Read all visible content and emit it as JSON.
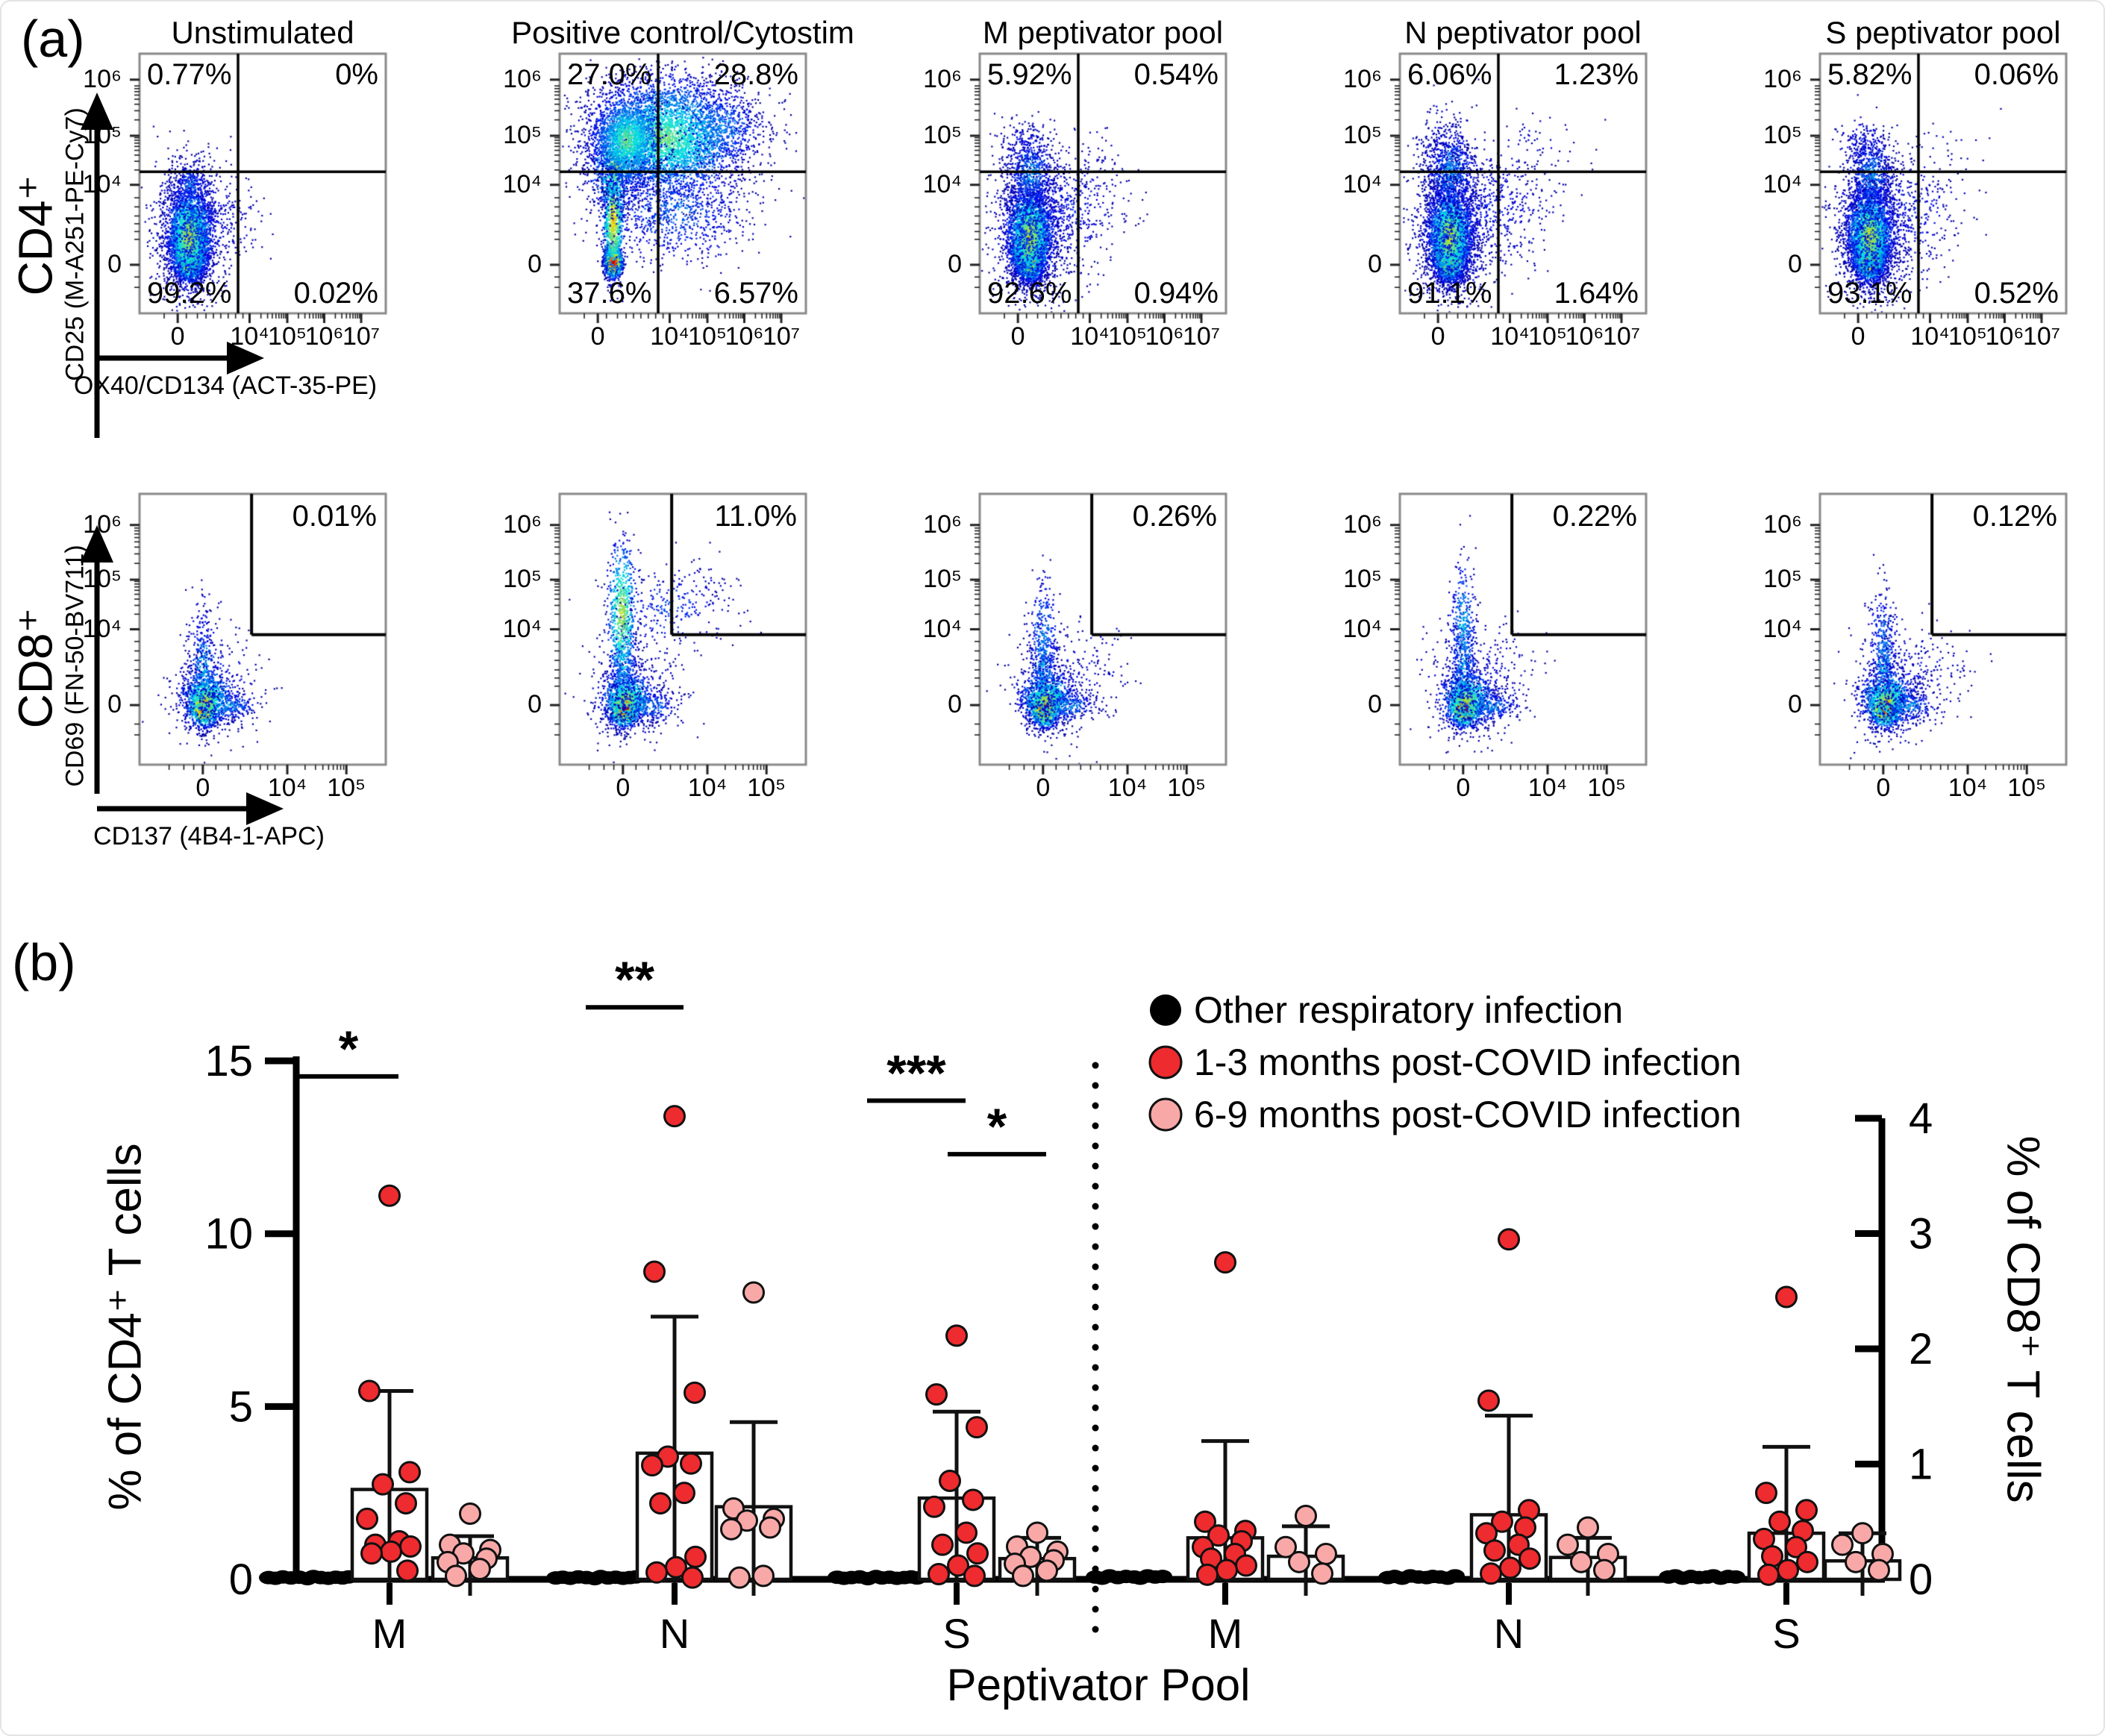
{
  "figure": {
    "panel_a_label": "(a)",
    "panel_b_label": "(b)"
  },
  "panel_a": {
    "column_titles": [
      "Unstimulated",
      "Positive control/Cytostim",
      "M peptivator pool",
      "N peptivator pool",
      "S peptivator pool"
    ],
    "rows": [
      {
        "row_label": "CD4⁺",
        "y_axis_label": "CD25 (M-A251-PE-Cy7)",
        "x_axis_label": "OX40/CD134 (ACT-35-PE)",
        "x_tick_labels": [
          "0",
          "10⁴",
          "10⁵",
          "10⁶",
          "10⁷"
        ],
        "y_tick_labels": [
          "10⁶",
          "10⁵",
          "10⁴",
          "0"
        ],
        "plots": [
          {
            "column": "Unstimulated",
            "quadrant_percents": {
              "upper_left": "0.77%",
              "upper_right": "0%",
              "lower_left": "99.2%",
              "lower_right": "0.02%"
            }
          },
          {
            "column": "Positive control/Cytostim",
            "quadrant_percents": {
              "upper_left": "27.0%",
              "upper_right": "28.8%",
              "lower_left": "37.6%",
              "lower_right": "6.57%"
            }
          },
          {
            "column": "M peptivator pool",
            "quadrant_percents": {
              "upper_left": "5.92%",
              "upper_right": "0.54%",
              "lower_left": "92.6%",
              "lower_right": "0.94%"
            }
          },
          {
            "column": "N peptivator pool",
            "quadrant_percents": {
              "upper_left": "6.06%",
              "upper_right": "1.23%",
              "lower_left": "91.1%",
              "lower_right": "1.64%"
            }
          },
          {
            "column": "S peptivator pool",
            "quadrant_percents": {
              "upper_left": "5.82%",
              "upper_right": "0.06%",
              "lower_left": "93.1%",
              "lower_right": "0.52%"
            }
          }
        ]
      },
      {
        "row_label": "CD8⁺",
        "y_axis_label": "CD69 (FN-50-BV711)",
        "x_axis_label": "CD137 (4B4-1-APC)",
        "x_tick_labels": [
          "0",
          "10⁴",
          "10⁵"
        ],
        "y_tick_labels": [
          "10⁶",
          "10⁵",
          "10⁴",
          "0"
        ],
        "plots": [
          {
            "column": "Unstimulated",
            "gate_percent": "0.01%"
          },
          {
            "column": "Positive control/Cytostim",
            "gate_percent": "11.0%"
          },
          {
            "column": "M peptivator pool",
            "gate_percent": "0.26%"
          },
          {
            "column": "N peptivator pool",
            "gate_percent": "0.22%"
          },
          {
            "column": "S peptivator pool",
            "gate_percent": "0.12%"
          }
        ]
      }
    ]
  },
  "chart_data": {
    "panel": "b",
    "type": "scatter",
    "bar_overlay": true,
    "xlabel": "Peptivator Pool",
    "x_group_labels": [
      "M",
      "N",
      "S",
      "M",
      "N",
      "S"
    ],
    "left_axis": {
      "label": "% of CD4⁺ T cells",
      "range": [
        0,
        15
      ],
      "ticks": [
        0,
        5,
        10,
        15
      ]
    },
    "right_axis": {
      "label": "% of CD8⁺ T cells",
      "range": [
        0,
        4
      ],
      "ticks": [
        0,
        1,
        2,
        3,
        4
      ]
    },
    "legend": [
      {
        "key": "other",
        "label": "Other respiratory infection",
        "color": "#000000"
      },
      {
        "key": "post_1_3",
        "label": "1-3 months post-COVID infection",
        "color": "#ee2b2e"
      },
      {
        "key": "post_6_9",
        "label": "6-9 months post-COVID infection",
        "color": "#f9a8a8"
      }
    ],
    "groups": [
      {
        "axis": "CD4",
        "pool": "M",
        "other": {
          "points": [
            0.05,
            0.03,
            0.07,
            0.04,
            0.06,
            0.02,
            0.08,
            0.05,
            0.03,
            0.06,
            0.04,
            0.07
          ]
        },
        "post_1_3": {
          "bar_mean": 2.6,
          "sd_top": 5.45,
          "points": [
            11.1,
            5.45,
            3.1,
            2.75,
            2.2,
            1.75,
            1.1,
            1.0,
            0.95,
            0.8,
            0.75,
            0.25
          ]
        },
        "post_6_9": {
          "bar_mean": 0.62,
          "sd_top": 1.25,
          "points": [
            1.9,
            1.0,
            0.85,
            0.75,
            0.6,
            0.5,
            0.3,
            0.1
          ]
        }
      },
      {
        "axis": "CD4",
        "pool": "N",
        "other": {
          "points": [
            0.04,
            0.06,
            0.03,
            0.07,
            0.05,
            0.02,
            0.08,
            0.04,
            0.06,
            0.03,
            0.05,
            0.07
          ]
        },
        "post_1_3": {
          "bar_mean": 3.65,
          "sd_top": 7.6,
          "points": [
            13.4,
            8.9,
            5.4,
            3.55,
            3.35,
            3.3,
            2.5,
            2.2,
            0.65,
            0.35,
            0.2,
            0.05
          ]
        },
        "post_6_9": {
          "bar_mean": 2.1,
          "sd_top": 4.55,
          "points": [
            8.3,
            2.05,
            1.75,
            1.7,
            1.5,
            1.45,
            0.1,
            0.05
          ]
        }
      },
      {
        "axis": "CD4",
        "pool": "S",
        "other": {
          "points": [
            0.06,
            0.03,
            0.05,
            0.07,
            0.02,
            0.08,
            0.04,
            0.06,
            0.03,
            0.05,
            0.07,
            0.04
          ]
        },
        "post_1_3": {
          "bar_mean": 2.35,
          "sd_top": 4.85,
          "points": [
            7.05,
            5.35,
            4.4,
            2.85,
            2.3,
            2.1,
            1.35,
            1.0,
            0.75,
            0.4,
            0.15,
            0.1
          ]
        },
        "post_6_9": {
          "bar_mean": 0.6,
          "sd_top": 1.2,
          "points": [
            1.35,
            0.95,
            0.8,
            0.65,
            0.55,
            0.45,
            0.25,
            0.1
          ]
        }
      },
      {
        "axis": "CD8",
        "pool": "M",
        "other": {
          "points": [
            0.02,
            0.01,
            0.03,
            0.015,
            0.025,
            0.02,
            0.01,
            0.03,
            0.02,
            0.025
          ]
        },
        "post_1_3": {
          "bar_mean": 0.36,
          "sd_top": 1.2,
          "points": [
            2.75,
            0.5,
            0.42,
            0.38,
            0.33,
            0.28,
            0.22,
            0.18,
            0.12,
            0.08,
            0.04
          ]
        },
        "post_6_9": {
          "bar_mean": 0.2,
          "sd_top": 0.46,
          "points": [
            0.55,
            0.28,
            0.22,
            0.15,
            0.05
          ]
        }
      },
      {
        "axis": "CD8",
        "pool": "N",
        "other": {
          "points": [
            0.015,
            0.025,
            0.01,
            0.03,
            0.02,
            0.015,
            0.025,
            0.02,
            0.01,
            0.03
          ]
        },
        "post_1_3": {
          "bar_mean": 0.56,
          "sd_top": 1.42,
          "points": [
            2.95,
            1.55,
            0.6,
            0.5,
            0.45,
            0.4,
            0.3,
            0.25,
            0.18,
            0.1,
            0.05
          ]
        },
        "post_6_9": {
          "bar_mean": 0.19,
          "sd_top": 0.36,
          "points": [
            0.45,
            0.3,
            0.22,
            0.15,
            0.08
          ]
        }
      },
      {
        "axis": "CD8",
        "pool": "S",
        "other": {
          "points": [
            0.02,
            0.03,
            0.01,
            0.025,
            0.015,
            0.02,
            0.03,
            0.01,
            0.025,
            0.02
          ]
        },
        "post_1_3": {
          "bar_mean": 0.4,
          "sd_top": 1.15,
          "points": [
            2.45,
            0.75,
            0.6,
            0.5,
            0.42,
            0.35,
            0.28,
            0.2,
            0.15,
            0.08,
            0.04
          ]
        },
        "post_6_9": {
          "bar_mean": 0.16,
          "sd_top": 0.4,
          "points": [
            0.4,
            0.3,
            0.22,
            0.15,
            0.08
          ]
        }
      }
    ],
    "significance": [
      {
        "axis": "CD4",
        "pool": "M",
        "from": "other",
        "to": "post_1_3",
        "stars": "*",
        "line_y": 14.55
      },
      {
        "axis": "CD4",
        "pool": "N",
        "from": "other",
        "to": "post_1_3",
        "stars": "**",
        "line_y": 16.55
      },
      {
        "axis": "CD4",
        "pool": "S",
        "from": "other",
        "to": "post_1_3",
        "stars": "***",
        "line_y": 13.85
      },
      {
        "axis": "CD4",
        "pool": "S",
        "from": "post_1_3",
        "to": "post_6_9",
        "stars": "*",
        "line_y": 12.3
      }
    ]
  }
}
